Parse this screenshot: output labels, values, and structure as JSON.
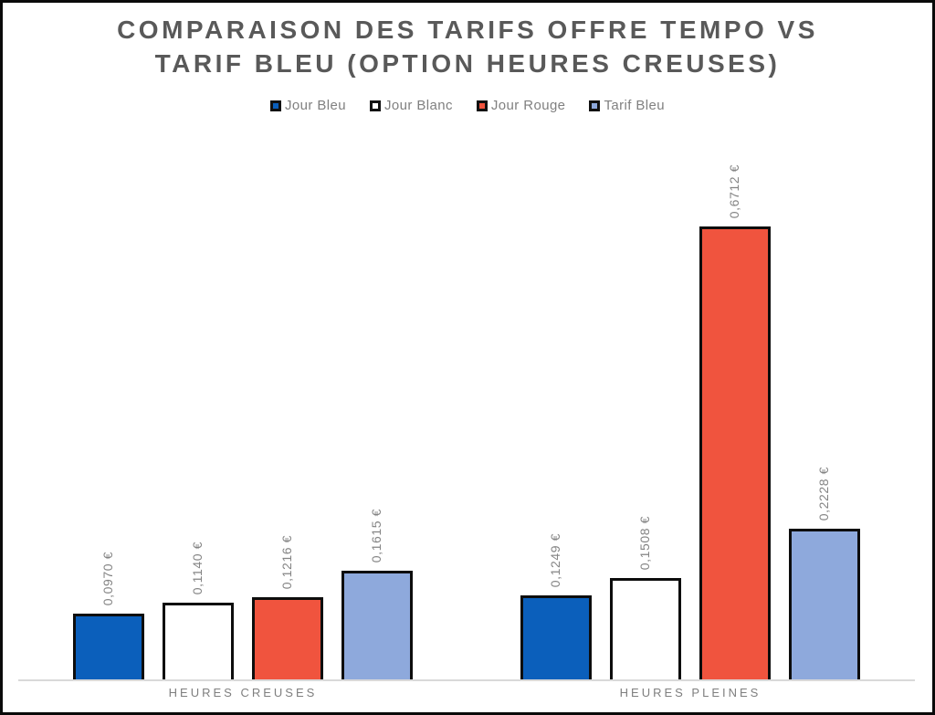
{
  "title": {
    "line1": "COMPARAISON DES TARIFS OFFRE TEMPO VS",
    "line2": "TARIF BLEU (OPTION HEURES CREUSES)"
  },
  "colors": {
    "title_text": "#595959",
    "legend_text": "#808080",
    "value_label_text": "#848484",
    "category_text": "#7f7f7f",
    "axis_line": "#d9d9d9",
    "bar_border": "#0d0d0d",
    "frame_border": "#0a0a0a",
    "background": "#ffffff"
  },
  "chart_data": {
    "type": "bar",
    "title": "COMPARAISON DES TARIFS OFFRE TEMPO VS TARIF BLEU (OPTION HEURES CREUSES)",
    "categories": [
      "HEURES CREUSES",
      "HEURES PLEINES"
    ],
    "series": [
      {
        "name": "Jour Bleu",
        "color": "#0b5fbb",
        "values": [
          0.097,
          0.1249
        ],
        "labels": [
          "0,0970 €",
          "0,1249 €"
        ]
      },
      {
        "name": "Jour Blanc",
        "color": "#ffffff",
        "values": [
          0.114,
          0.1508
        ],
        "labels": [
          "0,1140 €",
          "0,1508 €"
        ]
      },
      {
        "name": "Jour Rouge",
        "color": "#f0543e",
        "values": [
          0.1216,
          0.6712
        ],
        "labels": [
          "0,1216 €",
          "0,6712 €"
        ]
      },
      {
        "name": "Tarif Bleu",
        "color": "#8ea9dc",
        "values": [
          0.1615,
          0.2228
        ],
        "labels": [
          "0,1615 €",
          "0,2228 €"
        ]
      }
    ],
    "xlabel": "",
    "ylabel": "",
    "ylim": [
      0,
      0.75
    ],
    "grid": false,
    "legend_position": "top",
    "value_suffix": " €",
    "decimal_separator": ","
  }
}
